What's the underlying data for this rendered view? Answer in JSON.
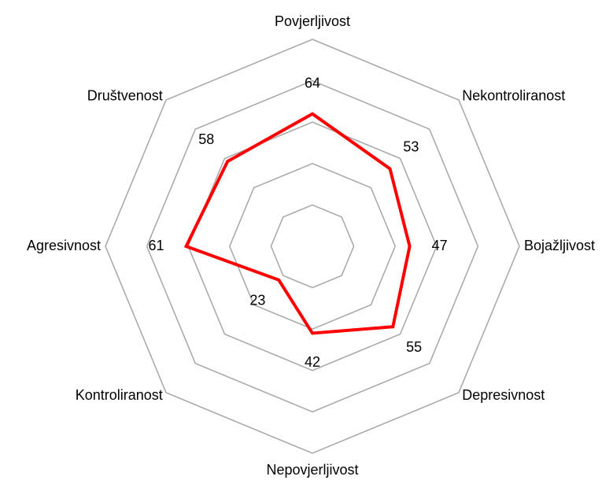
{
  "chart_data": {
    "type": "radar",
    "categories": [
      "Povjerljivost",
      "Nekontroliranost",
      "Bojažljivost",
      "Depresivnost",
      "Nepovjerljivost",
      "Kontroliranost",
      "Agresivnost",
      "Društvenost"
    ],
    "values": [
      64,
      53,
      47,
      55,
      42,
      23,
      61,
      58
    ],
    "color": "#ff0000",
    "ylim": [
      0,
      100
    ],
    "yticks": [
      20,
      40,
      60,
      80,
      100
    ],
    "grid": true
  }
}
